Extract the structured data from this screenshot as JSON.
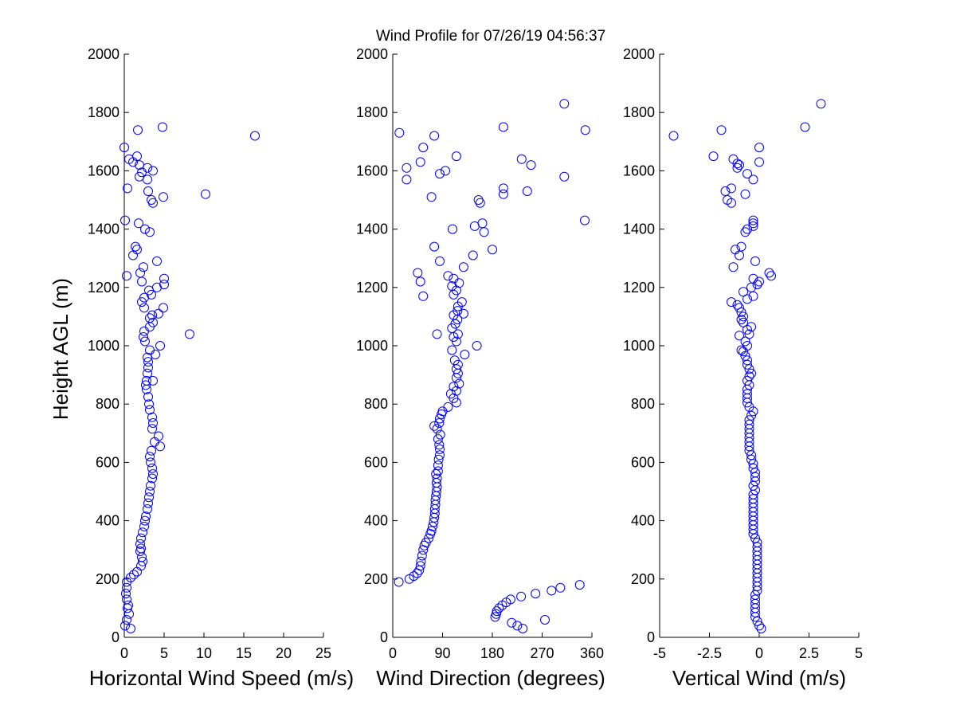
{
  "colors": {
    "marker": "#0000ff",
    "axis": "#000000",
    "background": "#ffffff"
  },
  "chart_data": [
    {
      "type": "scatter",
      "title": "Wind Profile for  07/26/19 04:56:37",
      "xlabel": "Horizontal Wind Speed (m/s)",
      "ylabel": "Height AGL (m)",
      "xlim": [
        0,
        25
      ],
      "ylim": [
        0,
        2000
      ],
      "xticks": [
        "0",
        "5",
        "10",
        "15",
        "20",
        "25"
      ],
      "yticks": [
        "0",
        "200",
        "400",
        "600",
        "800",
        "1000",
        "1200",
        "1400",
        "1600",
        "1800",
        "2000"
      ],
      "grid": false,
      "marker": "circle-open",
      "points": [
        [
          0.8,
          30
        ],
        [
          0.1,
          40
        ],
        [
          0.3,
          60
        ],
        [
          0.6,
          80
        ],
        [
          0.4,
          100
        ],
        [
          0.5,
          110
        ],
        [
          0.3,
          130
        ],
        [
          0.2,
          150
        ],
        [
          0.3,
          170
        ],
        [
          0.3,
          190
        ],
        [
          0.8,
          205
        ],
        [
          1.2,
          215
        ],
        [
          1.6,
          225
        ],
        [
          2.1,
          245
        ],
        [
          2.3,
          260
        ],
        [
          2.2,
          275
        ],
        [
          2.0,
          295
        ],
        [
          2.1,
          305
        ],
        [
          2.0,
          320
        ],
        [
          2.1,
          340
        ],
        [
          2.3,
          360
        ],
        [
          2.5,
          380
        ],
        [
          2.6,
          400
        ],
        [
          2.7,
          415
        ],
        [
          2.9,
          440
        ],
        [
          3.0,
          460
        ],
        [
          3.1,
          480
        ],
        [
          3.2,
          500
        ],
        [
          3.3,
          520
        ],
        [
          3.5,
          545
        ],
        [
          3.6,
          560
        ],
        [
          3.5,
          580
        ],
        [
          3.3,
          600
        ],
        [
          3.2,
          620
        ],
        [
          3.4,
          640
        ],
        [
          4.5,
          655
        ],
        [
          3.8,
          670
        ],
        [
          4.3,
          690
        ],
        [
          3.5,
          715
        ],
        [
          3.6,
          735
        ],
        [
          3.5,
          755
        ],
        [
          3.2,
          780
        ],
        [
          3.1,
          800
        ],
        [
          3.0,
          825
        ],
        [
          2.8,
          850
        ],
        [
          2.7,
          865
        ],
        [
          2.8,
          880
        ],
        [
          3.6,
          880
        ],
        [
          2.9,
          905
        ],
        [
          3.0,
          925
        ],
        [
          3.0,
          945
        ],
        [
          2.9,
          960
        ],
        [
          3.9,
          970
        ],
        [
          3.2,
          985
        ],
        [
          4.5,
          1000
        ],
        [
          2.6,
          1015
        ],
        [
          2.4,
          1030
        ],
        [
          2.5,
          1050
        ],
        [
          8.2,
          1040
        ],
        [
          3.2,
          1065
        ],
        [
          3.6,
          1080
        ],
        [
          3.2,
          1095
        ],
        [
          3.5,
          1105
        ],
        [
          4.3,
          1110
        ],
        [
          2.5,
          1130
        ],
        [
          4.9,
          1130
        ],
        [
          2.2,
          1150
        ],
        [
          2.5,
          1165
        ],
        [
          3.4,
          1175
        ],
        [
          3.1,
          1190
        ],
        [
          4.1,
          1200
        ],
        [
          5.0,
          1210
        ],
        [
          2.2,
          1220
        ],
        [
          5.0,
          1230
        ],
        [
          0.3,
          1240
        ],
        [
          2.0,
          1250
        ],
        [
          2.4,
          1270
        ],
        [
          4.1,
          1290
        ],
        [
          1.1,
          1310
        ],
        [
          1.6,
          1330
        ],
        [
          1.4,
          1340
        ],
        [
          3.2,
          1390
        ],
        [
          2.6,
          1400
        ],
        [
          1.8,
          1420
        ],
        [
          0.1,
          1430
        ],
        [
          3.6,
          1490
        ],
        [
          3.4,
          1500
        ],
        [
          4.9,
          1510
        ],
        [
          10.2,
          1520
        ],
        [
          3.0,
          1530
        ],
        [
          0.4,
          1540
        ],
        [
          2.9,
          1570
        ],
        [
          1.9,
          1580
        ],
        [
          2.2,
          1595
        ],
        [
          3.6,
          1600
        ],
        [
          2.9,
          1610
        ],
        [
          1.9,
          1620
        ],
        [
          1.1,
          1630
        ],
        [
          0.6,
          1640
        ],
        [
          1.6,
          1650
        ],
        [
          0.0,
          1680
        ],
        [
          16.4,
          1720
        ],
        [
          1.7,
          1740
        ],
        [
          4.8,
          1750
        ]
      ]
    },
    {
      "type": "scatter",
      "title": "",
      "xlabel": "Wind Direction (degrees)",
      "ylabel": "",
      "xlim": [
        0,
        360
      ],
      "ylim": [
        0,
        2000
      ],
      "xticks": [
        "0",
        "90",
        "180",
        "270",
        "360"
      ],
      "yticks": [
        "0",
        "200",
        "400",
        "600",
        "800",
        "1000",
        "1200",
        "1400",
        "1600",
        "1800",
        "2000"
      ],
      "grid": false,
      "marker": "circle-open",
      "points": [
        [
          235,
          30
        ],
        [
          225,
          40
        ],
        [
          215,
          50
        ],
        [
          275,
          60
        ],
        [
          185,
          70
        ],
        [
          187,
          80
        ],
        [
          188,
          90
        ],
        [
          192,
          100
        ],
        [
          198,
          110
        ],
        [
          205,
          120
        ],
        [
          213,
          130
        ],
        [
          232,
          140
        ],
        [
          258,
          150
        ],
        [
          287,
          160
        ],
        [
          303,
          170
        ],
        [
          338,
          180
        ],
        [
          11,
          190
        ],
        [
          30,
          200
        ],
        [
          38,
          210
        ],
        [
          44,
          220
        ],
        [
          48,
          230
        ],
        [
          50,
          245
        ],
        [
          51,
          260
        ],
        [
          53,
          280
        ],
        [
          55,
          300
        ],
        [
          57,
          315
        ],
        [
          60,
          325
        ],
        [
          65,
          340
        ],
        [
          68,
          355
        ],
        [
          70,
          365
        ],
        [
          72,
          380
        ],
        [
          74,
          395
        ],
        [
          75,
          410
        ],
        [
          76,
          425
        ],
        [
          76,
          440
        ],
        [
          77,
          455
        ],
        [
          77,
          470
        ],
        [
          78,
          485
        ],
        [
          79,
          500
        ],
        [
          80,
          515
        ],
        [
          79,
          530
        ],
        [
          80,
          545
        ],
        [
          78,
          560
        ],
        [
          82,
          570
        ],
        [
          82,
          590
        ],
        [
          83,
          610
        ],
        [
          85,
          625
        ],
        [
          85,
          645
        ],
        [
          84,
          660
        ],
        [
          82,
          680
        ],
        [
          86,
          695
        ],
        [
          80,
          715
        ],
        [
          75,
          725
        ],
        [
          84,
          735
        ],
        [
          85,
          750
        ],
        [
          88,
          765
        ],
        [
          90,
          775
        ],
        [
          100,
          790
        ],
        [
          115,
          805
        ],
        [
          110,
          820
        ],
        [
          105,
          835
        ],
        [
          115,
          845
        ],
        [
          110,
          860
        ],
        [
          120,
          870
        ],
        [
          115,
          890
        ],
        [
          118,
          905
        ],
        [
          115,
          920
        ],
        [
          118,
          935
        ],
        [
          112,
          950
        ],
        [
          130,
          970
        ],
        [
          107,
          985
        ],
        [
          152,
          1000
        ],
        [
          115,
          1015
        ],
        [
          110,
          1030
        ],
        [
          118,
          1040
        ],
        [
          80,
          1040
        ],
        [
          107,
          1060
        ],
        [
          113,
          1075
        ],
        [
          117,
          1090
        ],
        [
          110,
          1105
        ],
        [
          128,
          1110
        ],
        [
          117,
          1120
        ],
        [
          118,
          1135
        ],
        [
          125,
          1150
        ],
        [
          55,
          1170
        ],
        [
          110,
          1175
        ],
        [
          115,
          1190
        ],
        [
          107,
          1205
        ],
        [
          120,
          1215
        ],
        [
          110,
          1230
        ],
        [
          50,
          1220
        ],
        [
          100,
          1240
        ],
        [
          45,
          1250
        ],
        [
          128,
          1270
        ],
        [
          85,
          1290
        ],
        [
          145,
          1310
        ],
        [
          180,
          1330
        ],
        [
          75,
          1340
        ],
        [
          165,
          1390
        ],
        [
          108,
          1400
        ],
        [
          148,
          1410
        ],
        [
          162,
          1420
        ],
        [
          347,
          1430
        ],
        [
          158,
          1490
        ],
        [
          155,
          1500
        ],
        [
          70,
          1510
        ],
        [
          200,
          1520
        ],
        [
          200,
          1540
        ],
        [
          243,
          1530
        ],
        [
          25,
          1570
        ],
        [
          310,
          1580
        ],
        [
          85,
          1590
        ],
        [
          95,
          1600
        ],
        [
          25,
          1610
        ],
        [
          250,
          1620
        ],
        [
          50,
          1630
        ],
        [
          233,
          1640
        ],
        [
          115,
          1650
        ],
        [
          55,
          1680
        ],
        [
          75,
          1720
        ],
        [
          12,
          1730
        ],
        [
          348,
          1740
        ],
        [
          200,
          1750
        ],
        [
          310,
          1830
        ]
      ]
    },
    {
      "type": "scatter",
      "title": "",
      "xlabel": "Vertical Wind (m/s)",
      "ylabel": "",
      "xlim": [
        -5,
        5
      ],
      "ylim": [
        0,
        2000
      ],
      "xticks": [
        "-5",
        "-2.5",
        "0",
        "2.5",
        "5"
      ],
      "yticks": [
        "0",
        "200",
        "400",
        "600",
        "800",
        "1000",
        "1200",
        "1400",
        "1600",
        "1800",
        "2000"
      ],
      "grid": false,
      "marker": "circle-open",
      "points": [
        [
          0.1,
          30
        ],
        [
          0.0,
          40
        ],
        [
          -0.1,
          55
        ],
        [
          -0.2,
          70
        ],
        [
          -0.2,
          85
        ],
        [
          -0.2,
          100
        ],
        [
          -0.2,
          115
        ],
        [
          -0.2,
          130
        ],
        [
          -0.2,
          145
        ],
        [
          -0.1,
          160
        ],
        [
          -0.1,
          175
        ],
        [
          -0.1,
          190
        ],
        [
          -0.1,
          205
        ],
        [
          -0.1,
          220
        ],
        [
          -0.1,
          235
        ],
        [
          -0.1,
          250
        ],
        [
          -0.1,
          265
        ],
        [
          -0.1,
          280
        ],
        [
          -0.1,
          295
        ],
        [
          -0.1,
          310
        ],
        [
          -0.1,
          325
        ],
        [
          -0.2,
          340
        ],
        [
          -0.3,
          355
        ],
        [
          -0.3,
          370
        ],
        [
          -0.3,
          385
        ],
        [
          -0.3,
          400
        ],
        [
          -0.3,
          415
        ],
        [
          -0.3,
          430
        ],
        [
          -0.3,
          445
        ],
        [
          -0.3,
          460
        ],
        [
          -0.3,
          475
        ],
        [
          -0.3,
          490
        ],
        [
          -0.2,
          505
        ],
        [
          -0.3,
          520
        ],
        [
          -0.2,
          535
        ],
        [
          -0.2,
          550
        ],
        [
          -0.2,
          565
        ],
        [
          -0.3,
          580
        ],
        [
          -0.3,
          595
        ],
        [
          -0.4,
          610
        ],
        [
          -0.4,
          625
        ],
        [
          -0.5,
          640
        ],
        [
          -0.5,
          655
        ],
        [
          -0.5,
          670
        ],
        [
          -0.5,
          685
        ],
        [
          -0.5,
          700
        ],
        [
          -0.5,
          715
        ],
        [
          -0.5,
          730
        ],
        [
          -0.5,
          745
        ],
        [
          -0.4,
          760
        ],
        [
          -0.3,
          775
        ],
        [
          -0.5,
          790
        ],
        [
          -0.6,
          805
        ],
        [
          -0.6,
          820
        ],
        [
          -0.6,
          835
        ],
        [
          -0.6,
          850
        ],
        [
          -0.5,
          865
        ],
        [
          -0.6,
          880
        ],
        [
          -0.5,
          895
        ],
        [
          -0.4,
          905
        ],
        [
          -0.5,
          920
        ],
        [
          -0.6,
          935
        ],
        [
          -0.6,
          950
        ],
        [
          -0.7,
          965
        ],
        [
          -0.8,
          980
        ],
        [
          -0.9,
          985
        ],
        [
          -0.6,
          1000
        ],
        [
          -0.7,
          1015
        ],
        [
          -1.0,
          1035
        ],
        [
          -0.5,
          1040
        ],
        [
          -0.6,
          1055
        ],
        [
          -0.4,
          1065
        ],
        [
          -0.8,
          1080
        ],
        [
          -0.9,
          1090
        ],
        [
          -0.8,
          1100
        ],
        [
          -0.9,
          1115
        ],
        [
          -1.0,
          1130
        ],
        [
          -1.1,
          1140
        ],
        [
          -1.4,
          1150
        ],
        [
          -0.6,
          1160
        ],
        [
          -0.3,
          1170
        ],
        [
          -0.8,
          1185
        ],
        [
          -0.4,
          1200
        ],
        [
          -0.1,
          1210
        ],
        [
          0.0,
          1220
        ],
        [
          -0.3,
          1230
        ],
        [
          0.6,
          1240
        ],
        [
          0.5,
          1250
        ],
        [
          -1.3,
          1270
        ],
        [
          -0.2,
          1290
        ],
        [
          -1.0,
          1310
        ],
        [
          -1.2,
          1330
        ],
        [
          -0.9,
          1340
        ],
        [
          -0.7,
          1390
        ],
        [
          -0.6,
          1400
        ],
        [
          -0.3,
          1410
        ],
        [
          -0.3,
          1420
        ],
        [
          -0.3,
          1430
        ],
        [
          -1.4,
          1490
        ],
        [
          -1.6,
          1500
        ],
        [
          -0.7,
          1520
        ],
        [
          -1.7,
          1530
        ],
        [
          -1.4,
          1540
        ],
        [
          -0.3,
          1570
        ],
        [
          -0.6,
          1590
        ],
        [
          -1.1,
          1610
        ],
        [
          -1.0,
          1620
        ],
        [
          -1.1,
          1625
        ],
        [
          0.0,
          1630
        ],
        [
          -1.3,
          1640
        ],
        [
          -2.3,
          1650
        ],
        [
          0.0,
          1680
        ],
        [
          -4.3,
          1720
        ],
        [
          -1.9,
          1740
        ],
        [
          2.3,
          1750
        ],
        [
          3.1,
          1830
        ]
      ]
    }
  ]
}
